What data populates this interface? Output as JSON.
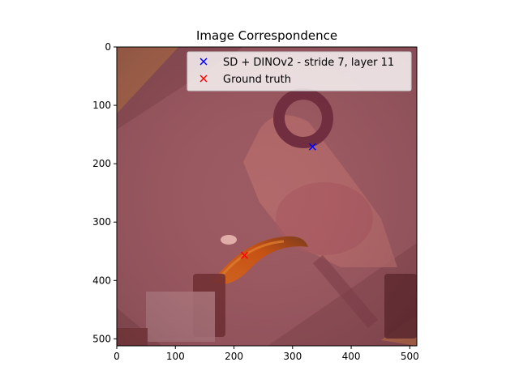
{
  "chart_data": {
    "type": "scatter",
    "title": "Image Correspondence",
    "xlabel": "",
    "ylabel": "",
    "xlim": [
      0,
      512
    ],
    "ylim": [
      512,
      0
    ],
    "x_ticks": [
      "0",
      "100",
      "200",
      "300",
      "400",
      "500"
    ],
    "y_ticks": [
      "0",
      "100",
      "200",
      "300",
      "400",
      "500"
    ],
    "grid": false,
    "legend_position": "top-right",
    "series": [
      {
        "name": "SD + DINOv2 - stride 7, layer 11",
        "marker": "x",
        "color": "#0000ff",
        "x": [
          334
        ],
        "y": [
          171
        ]
      },
      {
        "name": "Ground truth",
        "marker": "x",
        "color": "#ff0000",
        "x": [
          218
        ],
        "y": [
          357
        ]
      }
    ]
  }
}
